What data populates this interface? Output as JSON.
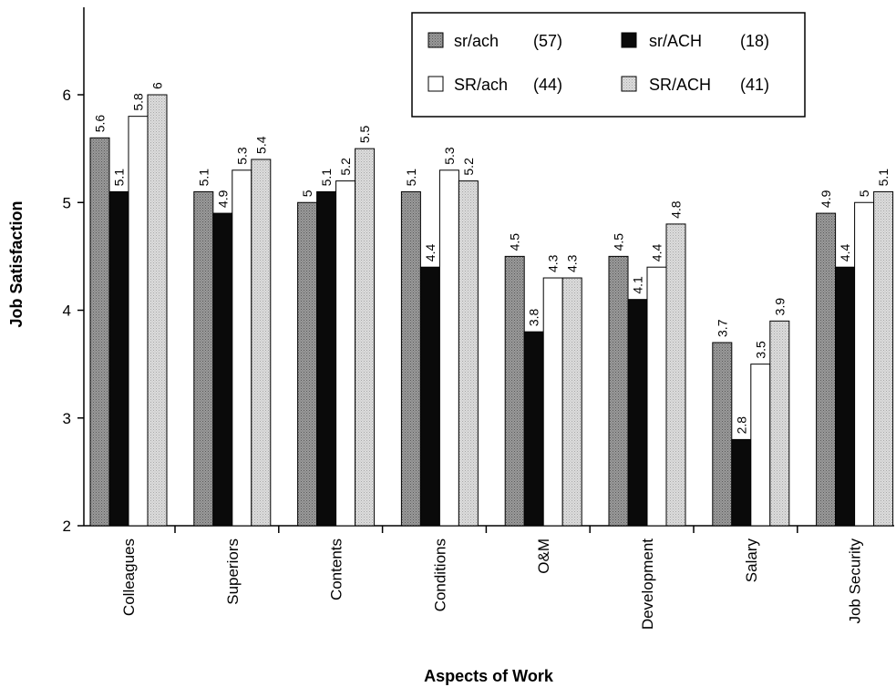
{
  "chart_data": {
    "type": "bar",
    "title": "",
    "xlabel": "Aspects of Work",
    "ylabel": "Job Satisfaction",
    "ylim": [
      2,
      6.6
    ],
    "yticks": [
      2,
      3,
      4,
      5,
      6
    ],
    "grid": false,
    "legend_position": "top-right",
    "categories": [
      "Colleagues",
      "Superiors",
      "Contents",
      "Conditions",
      "O&M",
      "Development",
      "Salary",
      "Job Security"
    ],
    "series": [
      {
        "name": "sr/ach",
        "count": "(57)",
        "color": "#8c8c8c",
        "pattern": "dots-dark",
        "values": [
          5.6,
          5.1,
          5,
          5.1,
          4.5,
          4.5,
          3.7,
          4.9
        ]
      },
      {
        "name": "sr/ACH",
        "count": "(18)",
        "color": "#0a0a0a",
        "pattern": "solid",
        "values": [
          5.1,
          4.9,
          5.1,
          4.4,
          3.8,
          4.1,
          2.8,
          4.4
        ]
      },
      {
        "name": "SR/ach",
        "count": "(44)",
        "color": "#ffffff",
        "pattern": "solid",
        "values": [
          5.8,
          5.3,
          5.2,
          5.3,
          4.3,
          4.4,
          3.5,
          5
        ]
      },
      {
        "name": "SR/ACH",
        "count": "(41)",
        "color": "#d2d2d2",
        "pattern": "dots-light",
        "values": [
          6,
          5.4,
          5.5,
          5.2,
          4.3,
          4.8,
          3.9,
          5.1
        ]
      }
    ]
  }
}
